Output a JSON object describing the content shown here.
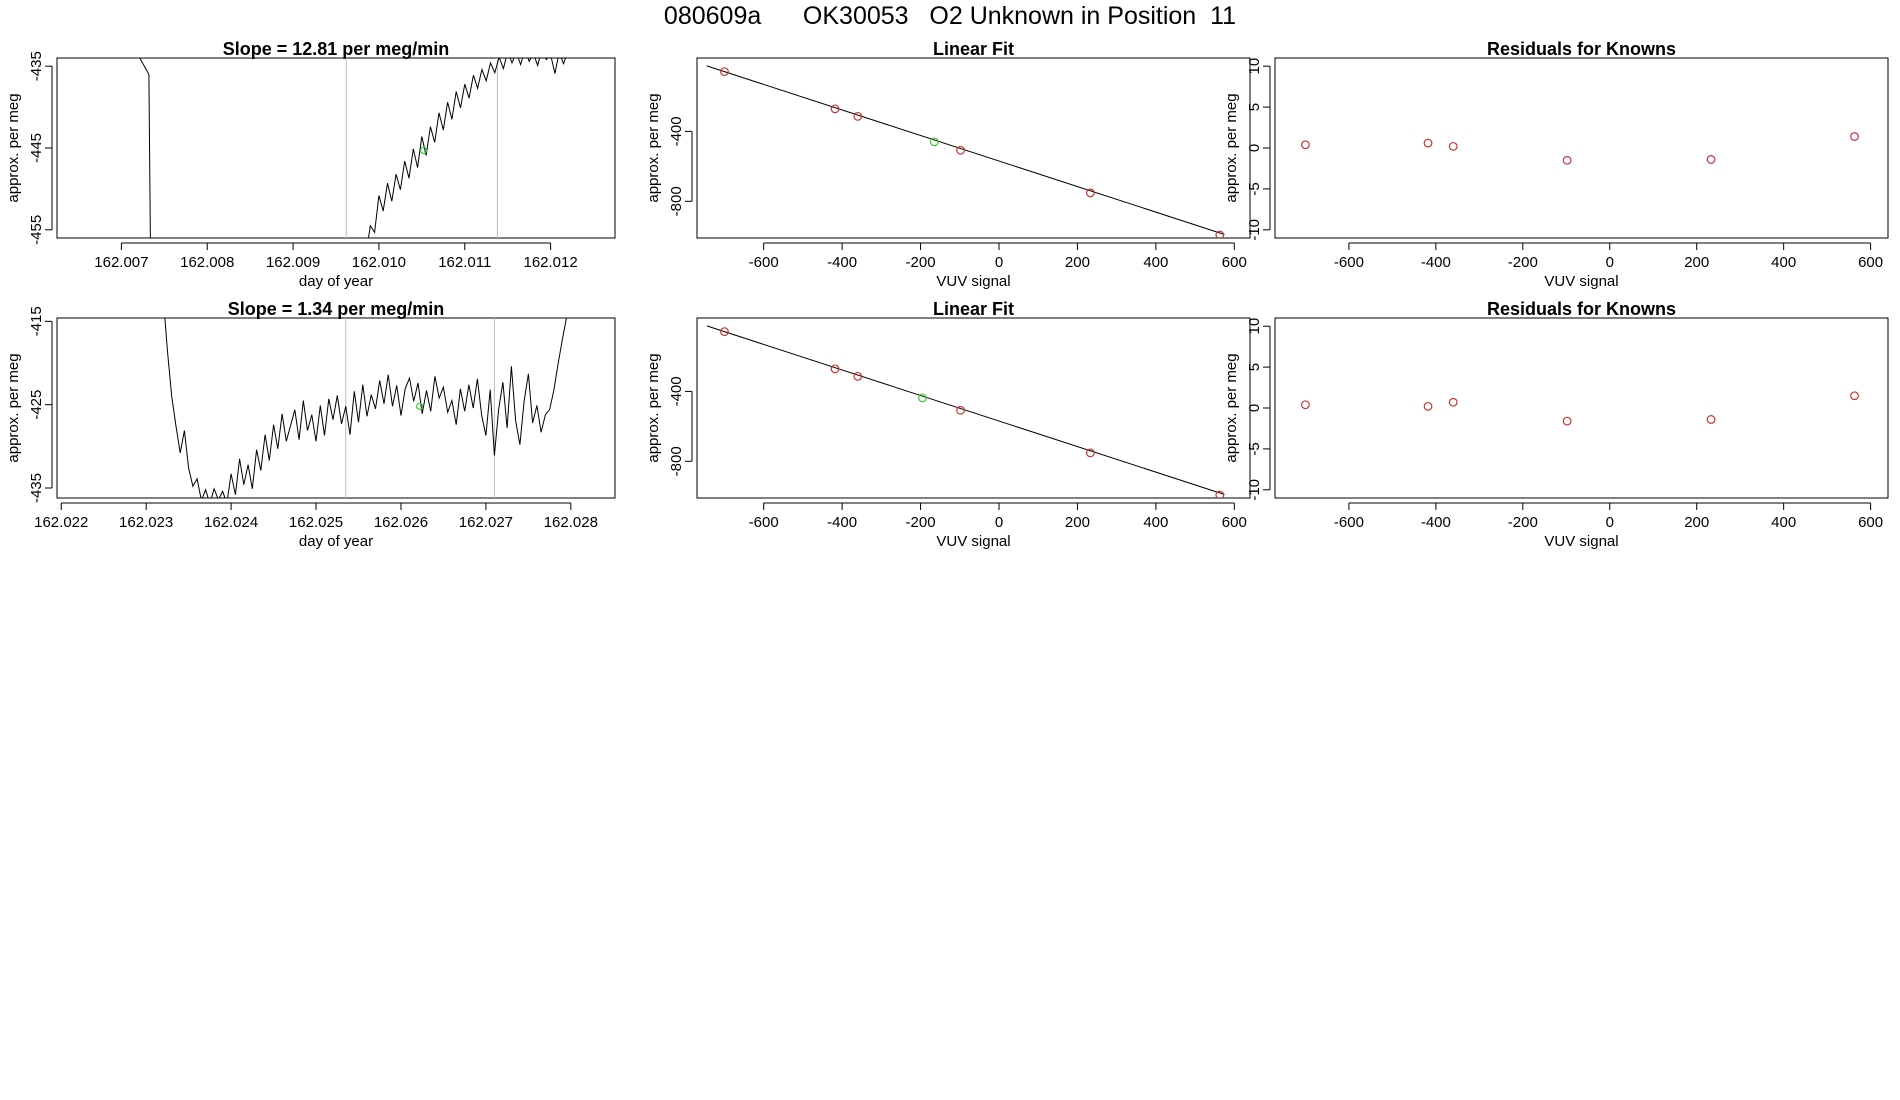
{
  "page_title": "080609a      OK30053   O2 Unknown in Position  11",
  "colors": {
    "line": "#000000",
    "known": "#cc3333",
    "unknown": "#33cc33",
    "vline": "#bbbbbb",
    "frame": "#000000"
  },
  "chart_data": [
    {
      "id": "ts1",
      "type": "line",
      "title": "Slope =  12.81  per meg/min",
      "xlabel": "day of year",
      "ylabel": "approx. per meg",
      "xlim": [
        162.00625,
        162.01275
      ],
      "ylim": [
        -456,
        -434
      ],
      "xticks": [
        162.007,
        162.008,
        162.009,
        162.01,
        162.011,
        162.012
      ],
      "xtick_labels": [
        "162.007",
        "162.008",
        "162.009",
        "162.010",
        "162.011",
        "162.012"
      ],
      "yticks": [
        -435,
        -445,
        -455
      ],
      "ytick_labels": [
        "-435",
        "-445",
        "-455"
      ],
      "vlines": [
        162.00962,
        162.01138
      ],
      "highlight_point": [
        162.01052,
        -445.3
      ],
      "series": [
        {
          "name": "trace A",
          "x": [
            162.007,
            162.00732,
            162.00735
          ],
          "y": [
            -430,
            -436,
            -470
          ]
        },
        {
          "name": "trace B",
          "x": [
            162.00985,
            162.0099,
            162.00995,
            162.01,
            162.01005,
            162.0101,
            162.01015,
            162.0102,
            162.01025,
            162.0103,
            162.01035,
            162.0104,
            162.01045,
            162.0105,
            162.01055,
            162.0106,
            162.01065,
            162.0107,
            162.01075,
            162.0108,
            162.01085,
            162.0109,
            162.01095,
            162.011,
            162.01105,
            162.0111,
            162.01115,
            162.0112,
            162.01125,
            162.0113,
            162.01135,
            162.0114,
            162.01145,
            162.0115,
            162.01155,
            162.0116,
            162.01165,
            162.0117,
            162.01175,
            162.0118,
            162.01185,
            162.0119,
            162.01195,
            162.012,
            162.01205,
            162.0121,
            162.01215,
            162.0122,
            162.01225,
            162.0123
          ],
          "y": [
            -458,
            -454.5,
            -455.3,
            -450.8,
            -452.7,
            -449.3,
            -451.5,
            -448.2,
            -450.1,
            -446.6,
            -448.7,
            -445.1,
            -447.4,
            -443.6,
            -445.9,
            -442.4,
            -444.3,
            -440.7,
            -442.8,
            -439.4,
            -441.5,
            -438.1,
            -440.1,
            -437.2,
            -438.9,
            -436.1,
            -437.7,
            -435.4,
            -436.8,
            -434.6,
            -435.8,
            -433.9,
            -435.3,
            -433.2,
            -434.6,
            -433.3,
            -434.8,
            -433.1,
            -434.4,
            -433.5,
            -434.9,
            -432.8,
            -434.2,
            -433.6,
            -435.9,
            -433.3,
            -434.7,
            -433.2,
            -432.1,
            -431.5
          ]
        }
      ]
    },
    {
      "id": "fit1",
      "type": "scatter",
      "title": "Linear Fit",
      "xlabel": "VUV signal",
      "ylabel": "approx. per meg",
      "xlim": [
        -770,
        640
      ],
      "ylim": [
        -1010,
        20
      ],
      "xticks": [
        -600,
        -400,
        -200,
        0,
        200,
        400,
        600
      ],
      "xtick_labels": [
        "-600",
        "-400",
        "-200",
        "0",
        "200",
        "400",
        "600"
      ],
      "yticks": [
        -400,
        -800
      ],
      "ytick_labels": [
        "-400",
        "-800"
      ],
      "fit_line": [
        [
          -745,
          -25
        ],
        [
          575,
          -990
        ]
      ],
      "knowns": [
        [
          -700,
          -58
        ],
        [
          -418,
          -271
        ],
        [
          -360,
          -314
        ],
        [
          -98,
          -508
        ],
        [
          233,
          -752
        ],
        [
          563,
          -993
        ]
      ],
      "unknown": [
        [
          -165,
          -460
        ]
      ]
    },
    {
      "id": "res1",
      "type": "scatter",
      "title": "Residuals for Knowns",
      "xlabel": "VUV signal",
      "ylabel": "approx. per meg",
      "xlim": [
        -770,
        640
      ],
      "ylim": [
        -11,
        11
      ],
      "xticks": [
        -600,
        -400,
        -200,
        0,
        200,
        400,
        600
      ],
      "xtick_labels": [
        "-600",
        "-400",
        "-200",
        "0",
        "200",
        "400",
        "600"
      ],
      "yticks": [
        10,
        5,
        0,
        -5,
        -10
      ],
      "ytick_labels": [
        "10",
        "5",
        "0",
        "-5",
        "-10"
      ],
      "knowns": [
        [
          -700,
          0.4
        ],
        [
          -418,
          0.6
        ],
        [
          -360,
          0.2
        ],
        [
          -98,
          -1.5
        ],
        [
          233,
          -1.4
        ],
        [
          563,
          1.4
        ]
      ]
    },
    {
      "id": "ts2",
      "type": "line",
      "title": "Slope =  1.34  per meg/min",
      "xlabel": "day of year",
      "ylabel": "approx. per meg",
      "xlim": [
        162.02195,
        162.02852
      ],
      "ylim": [
        -436.2,
        -414.6
      ],
      "xticks": [
        162.022,
        162.023,
        162.024,
        162.025,
        162.026,
        162.027,
        162.028
      ],
      "xtick_labels": [
        "162.022",
        "162.023",
        "162.024",
        "162.025",
        "162.026",
        "162.027",
        "162.028"
      ],
      "yticks": [
        -415,
        -425,
        -435
      ],
      "ytick_labels": [
        "-415",
        "-425",
        "-435"
      ],
      "vlines": [
        162.02535,
        162.0271
      ],
      "highlight_point": [
        162.02622,
        -425.2
      ],
      "series": [
        {
          "name": "trace",
          "x": [
            162.0232,
            162.02325,
            162.0233,
            162.02335,
            162.0234,
            162.02345,
            162.0235,
            162.02355,
            162.0236,
            162.02365,
            162.0237,
            162.02375,
            162.0238,
            162.02385,
            162.0239,
            162.02395,
            162.024,
            162.02405,
            162.0241,
            162.02415,
            162.0242,
            162.02425,
            162.0243,
            162.02435,
            162.0244,
            162.02445,
            162.0245,
            162.02455,
            162.0246,
            162.02465,
            162.0247,
            162.02475,
            162.0248,
            162.02485,
            162.0249,
            162.02495,
            162.025,
            162.02505,
            162.0251,
            162.02515,
            162.0252,
            162.02525,
            162.0253,
            162.02535,
            162.0254,
            162.02545,
            162.0255,
            162.02555,
            162.0256,
            162.02565,
            162.0257,
            162.02575,
            162.0258,
            162.02585,
            162.0259,
            162.02595,
            162.026,
            162.02605,
            162.0261,
            162.02615,
            162.0262,
            162.02625,
            162.0263,
            162.02635,
            162.0264,
            162.02645,
            162.0265,
            162.02655,
            162.0266,
            162.02665,
            162.0267,
            162.02675,
            162.0268,
            162.02685,
            162.0269,
            162.02695,
            162.027,
            162.02705,
            162.0271,
            162.02715,
            162.0272,
            162.02725,
            162.0273,
            162.02735,
            162.0274,
            162.02745,
            162.0275,
            162.02755,
            162.0276,
            162.02765,
            162.0277,
            162.02775,
            162.0278,
            162.02785,
            162.0279,
            162.02795,
            162.028
          ],
          "y": [
            -412,
            -418.5,
            -424,
            -427.5,
            -430.8,
            -428.1,
            -432.6,
            -434.8,
            -433.9,
            -436.5,
            -435.2,
            -436.9,
            -435.1,
            -436.4,
            -435.4,
            -436.8,
            -433.3,
            -435.8,
            -431.5,
            -434.6,
            -432.2,
            -435.1,
            -430.4,
            -432.9,
            -428.6,
            -431.7,
            -427.4,
            -430.3,
            -426.1,
            -429.4,
            -427.5,
            -425.6,
            -429.2,
            -424.5,
            -428.1,
            -426.2,
            -429.4,
            -425.1,
            -428.7,
            -424.3,
            -426.8,
            -423.9,
            -427.3,
            -425.2,
            -428.6,
            -423.4,
            -427.1,
            -422.6,
            -426.4,
            -423.8,
            -425.5,
            -422.1,
            -424.9,
            -421.4,
            -425.2,
            -422.7,
            -426.3,
            -423.1,
            -421.8,
            -424.6,
            -422.4,
            -426.1,
            -423.3,
            -425.8,
            -421.6,
            -424.2,
            -422.9,
            -425.9,
            -424.5,
            -427.4,
            -423.1,
            -425.8,
            -422.6,
            -425.4,
            -421.9,
            -426.3,
            -428.7,
            -423.2,
            -431.1,
            -425.6,
            -422.3,
            -427.8,
            -420.4,
            -426.9,
            -429.8,
            -424.6,
            -421.3,
            -427.2,
            -425.1,
            -428.3,
            -426.2,
            -425.6,
            -423.3,
            -420.1,
            -417.2,
            -414.5,
            -410.8
          ]
        }
      ]
    },
    {
      "id": "fit2",
      "type": "scatter",
      "title": "Linear Fit",
      "xlabel": "VUV signal",
      "ylabel": "approx. per meg",
      "xlim": [
        -770,
        640
      ],
      "ylim": [
        -1010,
        20
      ],
      "xticks": [
        -600,
        -400,
        -200,
        0,
        200,
        400,
        600
      ],
      "xtick_labels": [
        "-600",
        "-400",
        "-200",
        "0",
        "200",
        "400",
        "600"
      ],
      "yticks": [
        -400,
        -800
      ],
      "ytick_labels": [
        "-400",
        "-800"
      ],
      "fit_line": [
        [
          -745,
          -25
        ],
        [
          575,
          -990
        ]
      ],
      "knowns": [
        [
          -700,
          -58
        ],
        [
          -418,
          -271
        ],
        [
          -360,
          -314
        ],
        [
          -98,
          -508
        ],
        [
          233,
          -752
        ],
        [
          563,
          -993
        ]
      ],
      "unknown": [
        [
          -195,
          -437
        ]
      ]
    },
    {
      "id": "res2",
      "type": "scatter",
      "title": "Residuals for Knowns",
      "xlabel": "VUV signal",
      "ylabel": "approx. per meg",
      "xlim": [
        -770,
        640
      ],
      "ylim": [
        -11,
        11
      ],
      "xticks": [
        -600,
        -400,
        -200,
        0,
        200,
        400,
        600
      ],
      "xtick_labels": [
        "-600",
        "-400",
        "-200",
        "0",
        "200",
        "400",
        "600"
      ],
      "yticks": [
        10,
        5,
        0,
        -5,
        -10
      ],
      "ytick_labels": [
        "10",
        "5",
        "0",
        "-5",
        "-10"
      ],
      "knowns": [
        [
          -700,
          0.4
        ],
        [
          -418,
          0.2
        ],
        [
          -360,
          0.7
        ],
        [
          -98,
          -1.6
        ],
        [
          233,
          -1.4
        ],
        [
          563,
          1.5
        ]
      ]
    }
  ]
}
